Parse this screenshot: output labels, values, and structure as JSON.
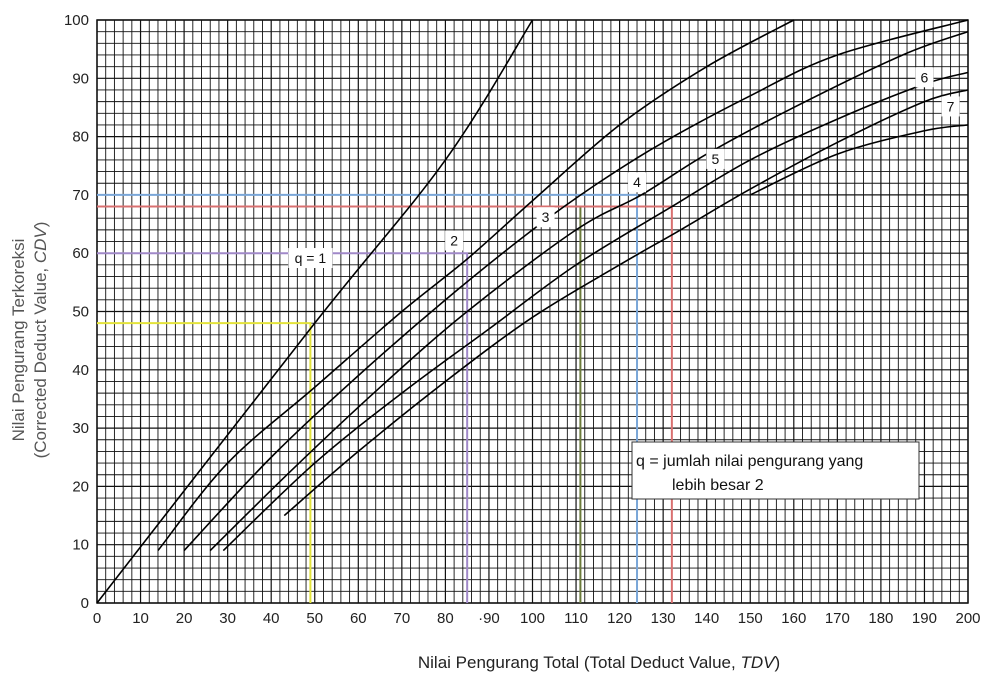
{
  "chart_data": {
    "type": "line",
    "xlabel_prefix": "Nilai Pengurang Total (Total Deduct Value, ",
    "xlabel_italic": "TDV",
    "xlabel_suffix": ")",
    "ylabel_line1": "Nilai Pengurang Terkoreksi",
    "ylabel_line2_prefix": "(Corrected Deduct Value, ",
    "ylabel_line2_italic": "CDV",
    "ylabel_line2_suffix": ")",
    "xlim": [
      0,
      200
    ],
    "ylim": [
      0,
      100
    ],
    "x_ticks": [
      "0",
      "10",
      "20",
      "30",
      "40",
      "50",
      "60",
      "70",
      "80",
      "·90",
      "100",
      "110",
      "120",
      "130",
      "140",
      "150",
      "160",
      "170",
      "180",
      "190",
      "200"
    ],
    "y_ticks": [
      "0",
      "10",
      "20",
      "30",
      "40",
      "50",
      "60",
      "70",
      "80",
      "90",
      "100"
    ],
    "grid": true,
    "series": [
      {
        "name": "q = 1",
        "points": [
          [
            0,
            0
          ],
          [
            50,
            48
          ],
          [
            80,
            76
          ],
          [
            100,
            100
          ]
        ]
      },
      {
        "name": "2",
        "points": [
          [
            14,
            9
          ],
          [
            30,
            24
          ],
          [
            50,
            37
          ],
          [
            70,
            50
          ],
          [
            85,
            59
          ],
          [
            100,
            69
          ],
          [
            120,
            82
          ],
          [
            140,
            92
          ],
          [
            160,
            100
          ]
        ]
      },
      {
        "name": "3",
        "points": [
          [
            20,
            9
          ],
          [
            40,
            25
          ],
          [
            60,
            39
          ],
          [
            80,
            52
          ],
          [
            100,
            64
          ],
          [
            115,
            72
          ],
          [
            130,
            79
          ],
          [
            150,
            87
          ],
          [
            170,
            94
          ],
          [
            200,
            100
          ]
        ]
      },
      {
        "name": "4",
        "points": [
          [
            26,
            9
          ],
          [
            45,
            23
          ],
          [
            65,
            37
          ],
          [
            85,
            50
          ],
          [
            110,
            64
          ],
          [
            125,
            70
          ],
          [
            140,
            77
          ],
          [
            160,
            85
          ],
          [
            185,
            94
          ],
          [
            200,
            98
          ]
        ]
      },
      {
        "name": "5",
        "points": [
          [
            29,
            9
          ],
          [
            50,
            24
          ],
          [
            70,
            36
          ],
          [
            90,
            47
          ],
          [
            110,
            58
          ],
          [
            132,
            68
          ],
          [
            150,
            76
          ],
          [
            170,
            83
          ],
          [
            190,
            89
          ],
          [
            200,
            91
          ]
        ]
      },
      {
        "name": "6",
        "points": [
          [
            43,
            15
          ],
          [
            60,
            26
          ],
          [
            80,
            38
          ],
          [
            100,
            49
          ],
          [
            120,
            58
          ],
          [
            134,
            64
          ],
          [
            150,
            71
          ],
          [
            170,
            79
          ],
          [
            190,
            86
          ],
          [
            200,
            88
          ]
        ]
      },
      {
        "name": "7",
        "points": [
          [
            150,
            70
          ],
          [
            170,
            77
          ],
          [
            190,
            81
          ],
          [
            200,
            82
          ]
        ]
      }
    ],
    "reference_lines": [
      {
        "color": "#e3e33a",
        "x": 49,
        "y": 48
      },
      {
        "color": "#a088c8",
        "x": 85,
        "y": 60
      },
      {
        "color": "#6b7a3a",
        "x": 111,
        "y": 68
      },
      {
        "color": "#7aa6d8",
        "x": 124,
        "y": 70
      },
      {
        "color": "#d97070",
        "x": 132,
        "y": 68
      }
    ],
    "curve_labels": [
      {
        "text": "q = 1",
        "x": 49,
        "y": 59
      },
      {
        "text": "2",
        "x": 82,
        "y": 62
      },
      {
        "text": "3",
        "x": 103,
        "y": 66
      },
      {
        "text": "4",
        "x": 124,
        "y": 72
      },
      {
        "text": "5",
        "x": 142,
        "y": 76
      },
      {
        "text": "6",
        "x": 190,
        "y": 90
      },
      {
        "text": "7",
        "x": 196,
        "y": 85
      }
    ],
    "note": {
      "line1": "q =  jumlah nilai pengurang yang",
      "line2": "lebih besar 2"
    }
  }
}
